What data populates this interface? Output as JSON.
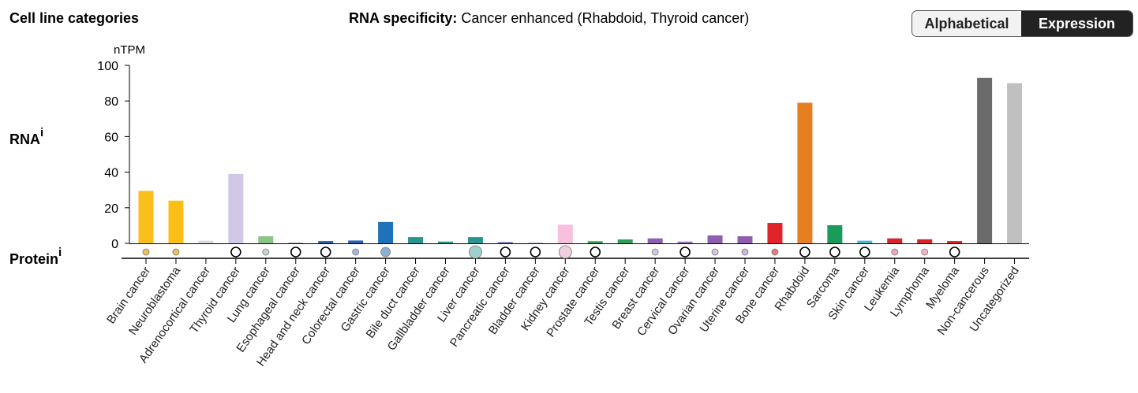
{
  "header": {
    "title": "Cell line categories",
    "specificity_label": "RNA specificity:",
    "specificity_value": "Cancer enhanced (Rhabdoid, Thyroid cancer)"
  },
  "sort_toggle": {
    "options": [
      "Alphabetical",
      "Expression"
    ],
    "selected": "Expression"
  },
  "rows": {
    "rna_label": "RNA",
    "protein_label": "Protein",
    "info_marker": "i"
  },
  "chart_data": {
    "type": "bar",
    "ylabel": "nTPM",
    "ylim": [
      0,
      100
    ],
    "yticks": [
      0,
      20,
      40,
      60,
      80,
      100
    ],
    "grid": false,
    "categories": [
      "Brain cancer",
      "Neuroblastoma",
      "Adrenocortical cancer",
      "Thyroid cancer",
      "Lung cancer",
      "Esophageal cancer",
      "Head and neck cancer",
      "Colorectal cancer",
      "Gastric cancer",
      "Bile duct cancer",
      "Gallbladder cancer",
      "Liver cancer",
      "Pancreatic cancer",
      "Bladder cancer",
      "Kidney cancer",
      "Prostate cancer",
      "Testis cancer",
      "Breast cancer",
      "Cervical cancer",
      "Ovarian cancer",
      "Uterine cancer",
      "Bone cancer",
      "Rhabdoid",
      "Sarcoma",
      "Skin cancer",
      "Leukemia",
      "Lymphoma",
      "Myeloma",
      "Non-cancerous",
      "Uncategorized"
    ],
    "values": [
      29.5,
      24,
      1.5,
      39,
      4,
      0.5,
      1.3,
      1.6,
      12,
      3.5,
      1,
      3.5,
      0.8,
      0.7,
      10.5,
      1.2,
      2.2,
      2.8,
      1,
      4.5,
      4,
      11.5,
      79,
      10.2,
      1.5,
      2.8,
      2.3,
      1.3,
      93,
      90
    ],
    "colors": [
      "#fcbe19",
      "#fcbe19",
      "#d9d9e3",
      "#d0c8e4",
      "#8bc48a",
      "#b0b0b0",
      "#2b61b0",
      "#2b61b0",
      "#1f72b8",
      "#2a9491",
      "#2a9491",
      "#2a9491",
      "#7a7ab0",
      "#d0d0e0",
      "#f7c0dc",
      "#2f9e5a",
      "#2f9e5a",
      "#8e5fb0",
      "#9a72b8",
      "#8e5fb0",
      "#8e5fb0",
      "#e0242a",
      "#e67e22",
      "#1b9b5a",
      "#4cb6d4",
      "#d8232a",
      "#d8232a",
      "#d8232a",
      "#6b6b6b",
      "#c0c0c0"
    ],
    "protein_markers": [
      "small",
      "small",
      "none",
      "open",
      "small",
      "open",
      "open",
      "small",
      "medium",
      "none",
      "none",
      "large",
      "open",
      "open",
      "large",
      "open",
      "none",
      "small",
      "open",
      "small",
      "small",
      "small",
      "open",
      "open",
      "open",
      "small",
      "small",
      "open",
      "none",
      "none"
    ],
    "protein_colors": [
      "#e8c35a",
      "#e8c35a",
      "",
      "#000000",
      "#c8d8c8",
      "#000000",
      "#000000",
      "#a8b8d8",
      "#8fb0d0",
      "",
      "",
      "#9fd0cc",
      "#000000",
      "#000000",
      "#f0d0e0",
      "#000000",
      "",
      "#d4c8e0",
      "#000000",
      "#d4c8e0",
      "#c8bcd8",
      "#e08080",
      "#000000",
      "#000000",
      "#000000",
      "#f0a8b0",
      "#f0b8c0",
      "#000000",
      "",
      ""
    ]
  }
}
